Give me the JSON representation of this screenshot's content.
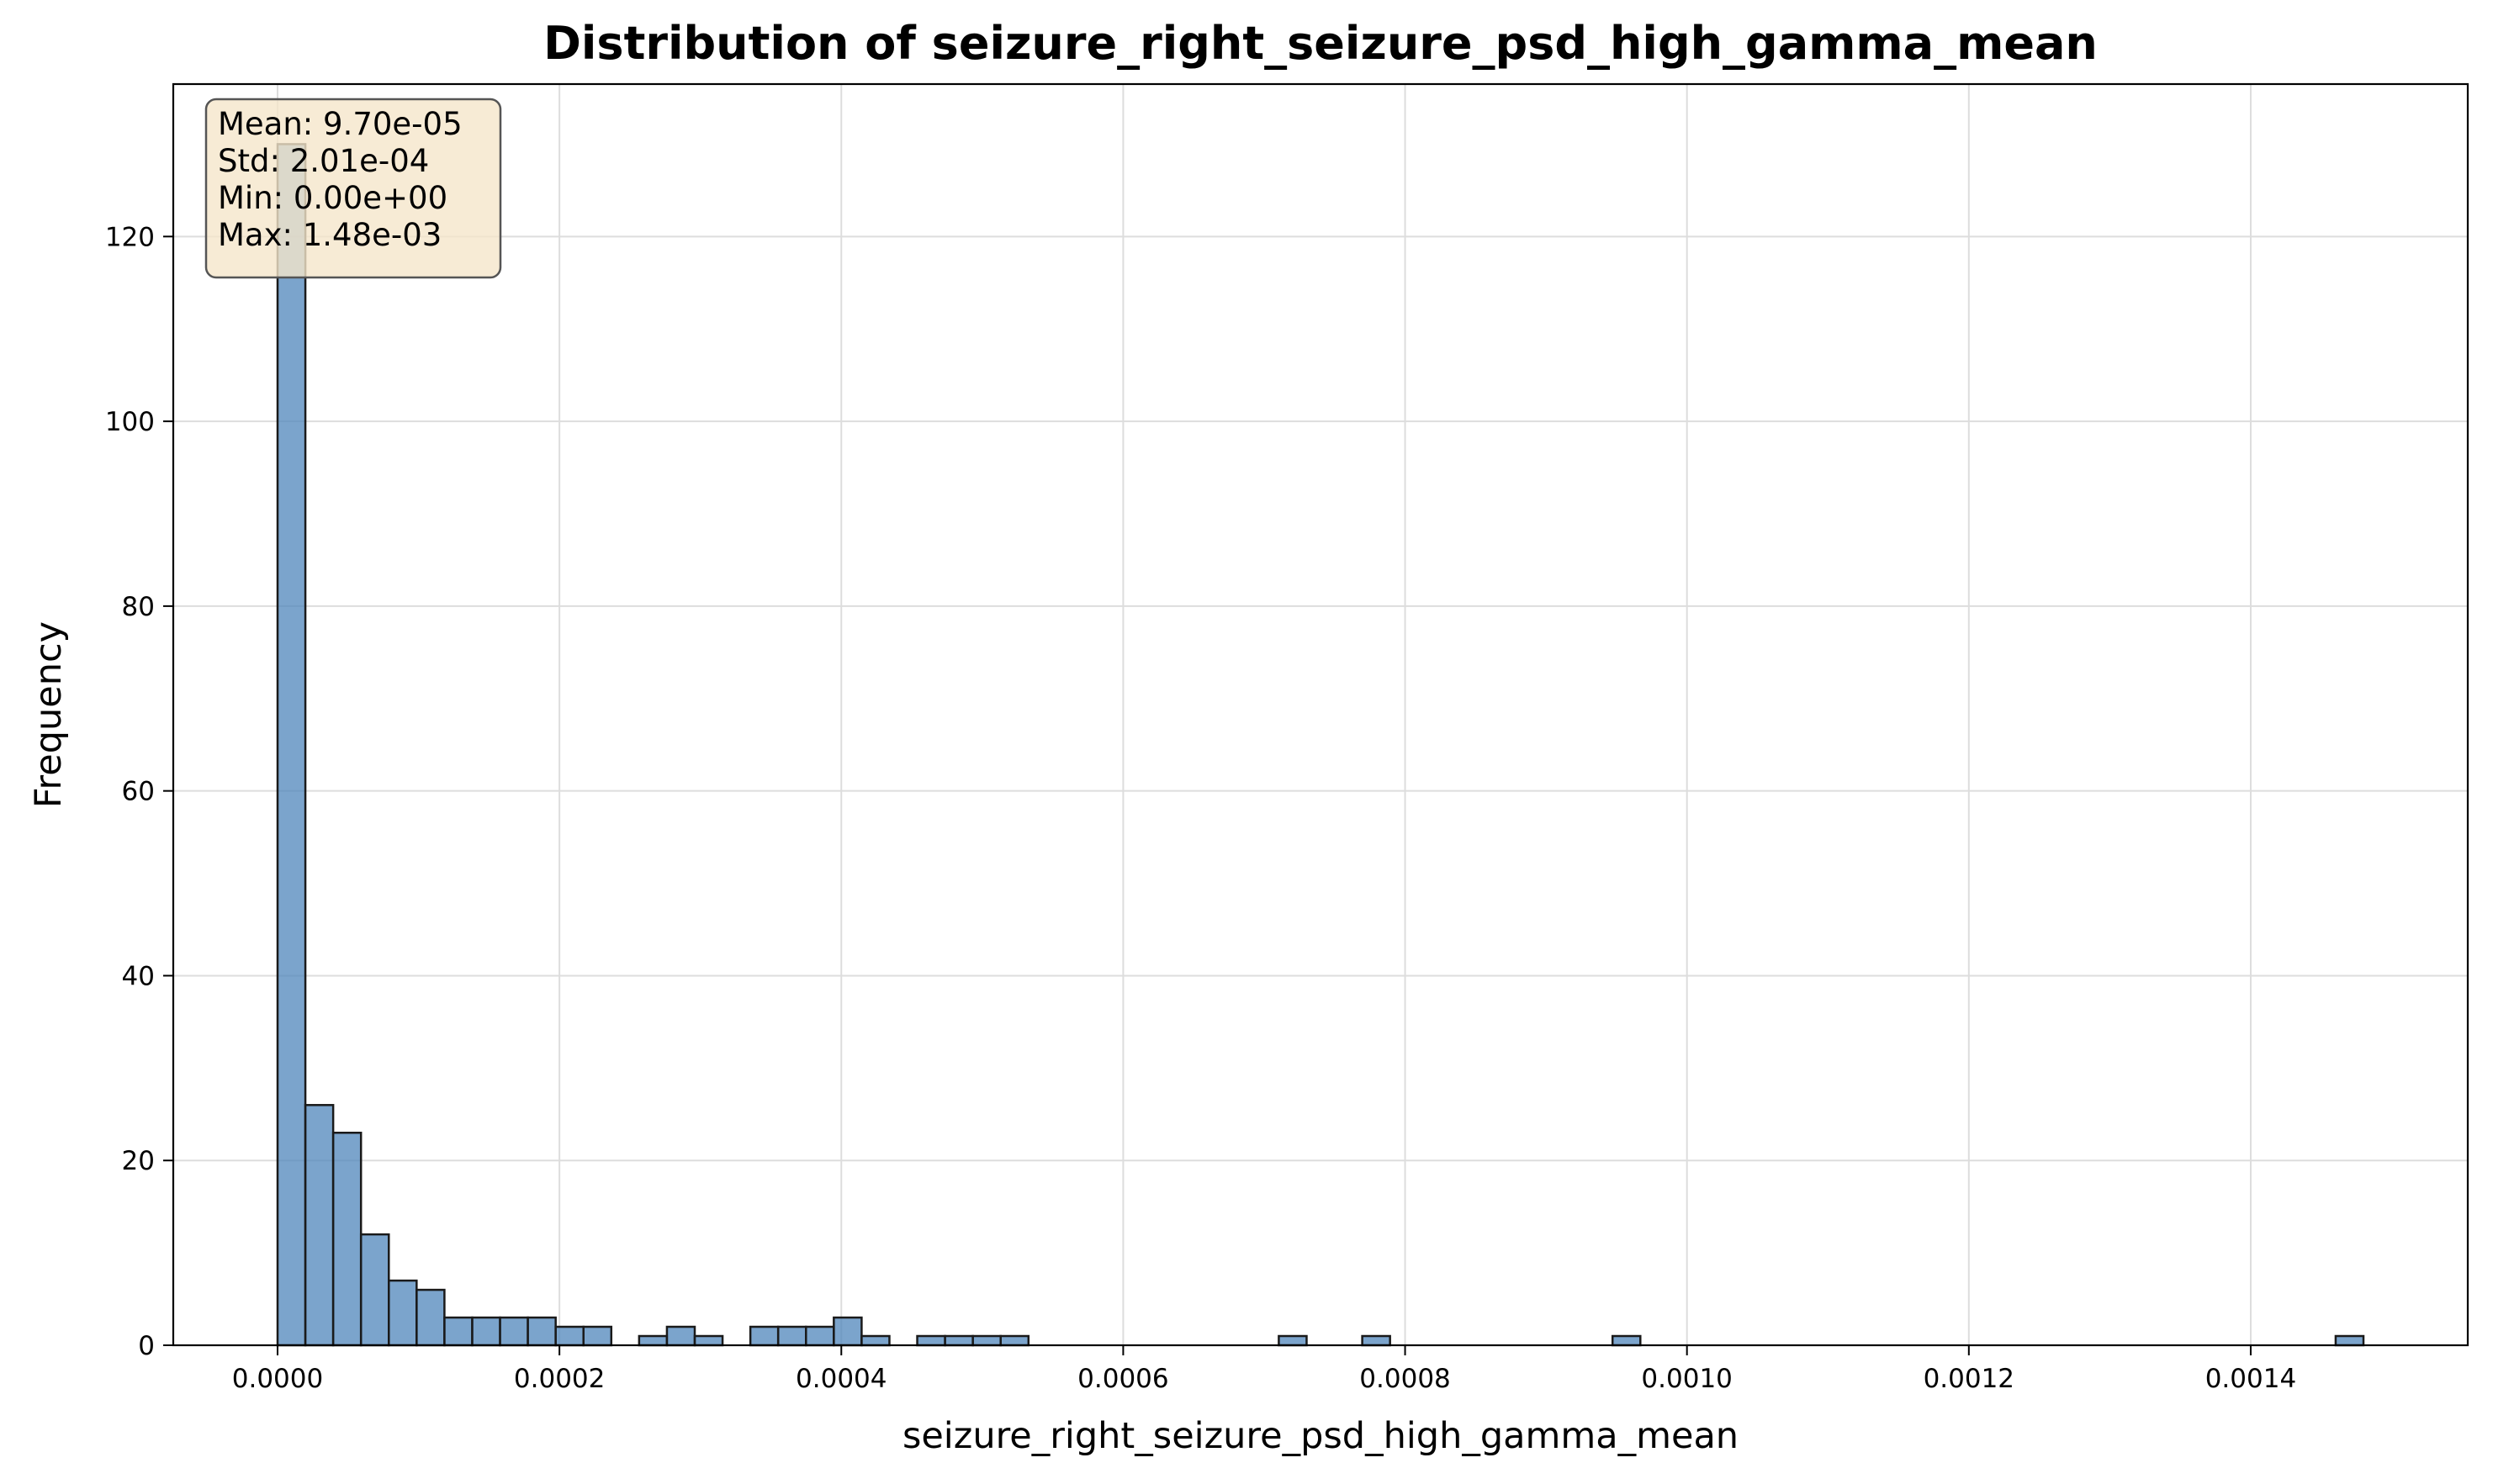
{
  "chart_data": {
    "type": "bar",
    "title": "Distribution of seizure_right_seizure_psd_high_gamma_mean",
    "xlabel": "seizure_right_seizure_psd_high_gamma_mean",
    "ylabel": "Frequency",
    "xlim": [
      -7.4e-05,
      0.001554
    ],
    "ylim": [
      0,
      136.5
    ],
    "xticks": [
      {
        "value": 0.0,
        "label": "0.0000"
      },
      {
        "value": 0.0002,
        "label": "0.0002"
      },
      {
        "value": 0.0004,
        "label": "0.0004"
      },
      {
        "value": 0.0006,
        "label": "0.0006"
      },
      {
        "value": 0.0008,
        "label": "0.0008"
      },
      {
        "value": 0.001,
        "label": "0.0010"
      },
      {
        "value": 0.0012,
        "label": "0.0012"
      },
      {
        "value": 0.0014,
        "label": "0.0014"
      }
    ],
    "yticks": [
      {
        "value": 0,
        "label": "0"
      },
      {
        "value": 20,
        "label": "20"
      },
      {
        "value": 40,
        "label": "40"
      },
      {
        "value": 60,
        "label": "60"
      },
      {
        "value": 80,
        "label": "80"
      },
      {
        "value": 100,
        "label": "100"
      },
      {
        "value": 120,
        "label": "120"
      }
    ],
    "bins": {
      "start": 0.0,
      "end": 0.00148,
      "count": 75
    },
    "values": [
      130,
      26,
      23,
      12,
      7,
      6,
      3,
      3,
      3,
      3,
      2,
      2,
      0,
      1,
      2,
      1,
      0,
      2,
      2,
      2,
      3,
      1,
      0,
      1,
      1,
      1,
      1,
      0,
      0,
      0,
      0,
      0,
      0,
      0,
      0,
      0,
      1,
      0,
      0,
      1,
      0,
      0,
      0,
      0,
      0,
      0,
      0,
      0,
      1,
      0,
      0,
      0,
      0,
      0,
      0,
      0,
      0,
      0,
      0,
      0,
      0,
      0,
      0,
      0,
      0,
      0,
      0,
      0,
      0,
      0,
      0,
      0,
      0,
      0,
      1
    ],
    "grid": true,
    "bar_color": "#4f86bb",
    "bar_edge_color": "#1a1a1a",
    "stats_box": {
      "lines": [
        "Mean: 9.70e-05",
        "Std: 2.01e-04",
        "Min: 0.00e+00",
        "Max: 1.48e-03"
      ],
      "placement": "top-left",
      "background": "#f5e6cb"
    }
  }
}
